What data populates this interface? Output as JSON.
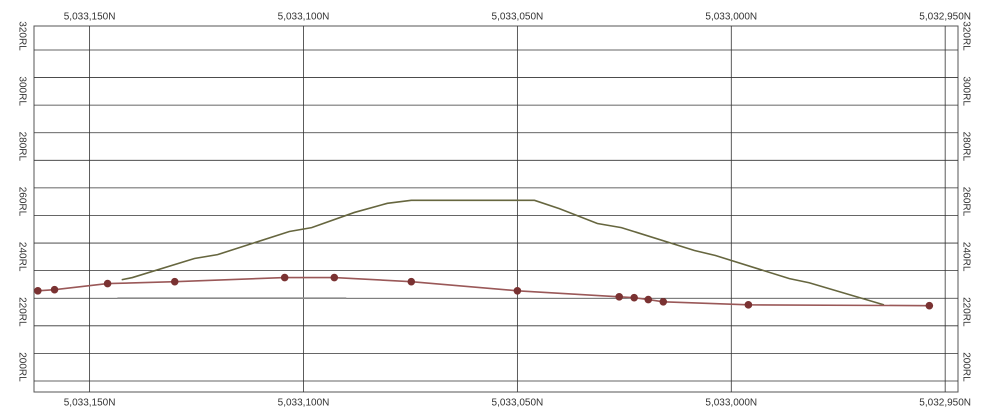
{
  "chart_data": {
    "type": "line",
    "xlim": [
      5033163,
      5032947
    ],
    "ylim": [
      196,
      328.7
    ],
    "xticks": [
      {
        "value": 5033150,
        "label": "5,033,150N"
      },
      {
        "value": 5033100,
        "label": "5,033,100N"
      },
      {
        "value": 5033050,
        "label": "5,033,050N"
      },
      {
        "value": 5033000,
        "label": "5,033,000N"
      },
      {
        "value": 5032950,
        "label": "5,032,950N"
      }
    ],
    "yticks": [
      {
        "value": 200,
        "label": "200RL"
      },
      {
        "value": 220,
        "label": "220RL"
      },
      {
        "value": 240,
        "label": "240RL"
      },
      {
        "value": 260,
        "label": "260RL"
      },
      {
        "value": 280,
        "label": "280RL"
      },
      {
        "value": 300,
        "label": "300RL"
      },
      {
        "value": 320,
        "label": "320RL"
      }
    ],
    "ygrid": [
      210,
      230,
      250,
      270,
      290,
      310
    ],
    "grid": true,
    "series": [
      {
        "color": "#66663f",
        "markers": false,
        "x": [
          5033142.5,
          5033140.0,
          5033125.5,
          5033120.1,
          5033103.3,
          5033098.1,
          5033088.1,
          5033080.4,
          5033074.8,
          5033046.0,
          5033040.2,
          5033031.3,
          5033025.7,
          5033008.6,
          5033003.7,
          5032986.4,
          5032981.8,
          5032964.3
        ],
        "values": [
          236.7,
          237.5,
          244.4,
          245.8,
          254.2,
          255.6,
          261.1,
          264.4,
          265.5,
          265.5,
          262.5,
          257.1,
          255.6,
          247.3,
          245.5,
          237.1,
          235.6,
          227.6
        ]
      },
      {
        "color": "#9a5858",
        "markers": true,
        "marker_color": "#7a3232",
        "x": [
          5033162.1,
          5033158.2,
          5033145.8,
          5033130.1,
          5033104.4,
          5033092.8,
          5033074.8,
          5033050.0,
          5033026.2,
          5033022.7,
          5033019.4,
          5033015.9,
          5032996.0,
          5032953.7
        ],
        "values": [
          232.7,
          233.1,
          235.3,
          236.0,
          237.5,
          237.5,
          236.0,
          232.7,
          230.5,
          230.2,
          229.5,
          228.7,
          227.6,
          227.3
        ]
      },
      {
        "color": "#8a8a8a",
        "markers": false,
        "x": [
          5033143.5,
          5033090.0
        ],
        "values": [
          230,
          230
        ]
      }
    ]
  }
}
